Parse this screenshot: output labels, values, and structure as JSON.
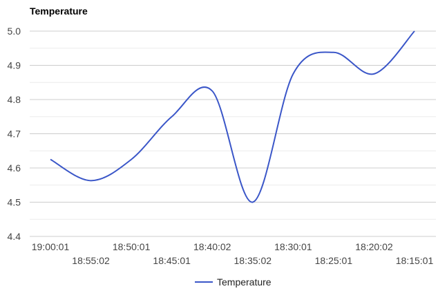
{
  "chart_data": {
    "type": "line",
    "title": "Temperature",
    "xlabel": "",
    "ylabel": "",
    "categories": [
      "19:00:01",
      "18:55:02",
      "18:50:01",
      "18:45:01",
      "18:40:02",
      "18:35:02",
      "18:30:01",
      "18:25:01",
      "18:20:02",
      "18:15:01"
    ],
    "series": [
      {
        "name": "Temperature",
        "values": [
          4.625,
          4.563,
          4.625,
          4.75,
          4.825,
          4.5,
          4.875,
          4.938,
          4.875,
          5.0
        ],
        "color": "#3a56c8"
      }
    ],
    "yticks": [
      "4.4",
      "4.5",
      "4.6",
      "4.7",
      "4.8",
      "4.9",
      "5.0"
    ],
    "ylim": [
      4.4,
      5.0
    ],
    "grid": true,
    "minor_grid": true,
    "smooth": true,
    "legend": "bottom"
  }
}
